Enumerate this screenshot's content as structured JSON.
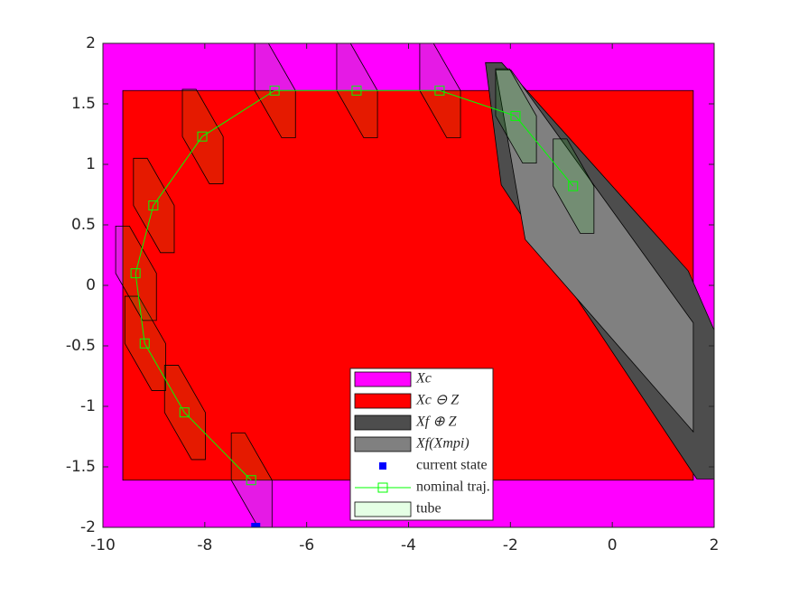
{
  "chart_data": {
    "type": "patch",
    "xlim": [
      -10,
      2
    ],
    "ylim": [
      -2,
      2
    ],
    "xticks": [
      -10,
      -8,
      -6,
      -4,
      -2,
      0,
      2
    ],
    "yticks": [
      -2,
      -1.5,
      -1,
      -0.5,
      0,
      0.5,
      1,
      1.5,
      2
    ],
    "legend": "south",
    "series": [
      {
        "name": "Xc",
        "type": "patch",
        "color": "#ff00ff",
        "x": [
          -10,
          2,
          2,
          -10
        ],
        "y": [
          -2,
          -2,
          2,
          2
        ]
      },
      {
        "name": "Xc ⊖ Z",
        "type": "patch",
        "color": "#ff0000",
        "x": [
          -9.61,
          1.59,
          1.59,
          -9.61
        ],
        "y": [
          -1.61,
          -1.61,
          1.61,
          1.61
        ]
      },
      {
        "name": "Xf ⊕ Z",
        "type": "patch",
        "color": "#4d4d4d",
        "x": [
          -2.49,
          -2.17,
          1.49,
          2.0,
          2.0,
          1.66,
          -2.18
        ],
        "y": [
          1.84,
          1.84,
          0.12,
          -0.37,
          -1.6,
          -1.6,
          0.83
        ]
      },
      {
        "name": "Xf(Xmpi)",
        "type": "patch",
        "color": "#808080",
        "x": [
          -2.29,
          -1.99,
          1.59,
          1.59,
          -1.71
        ],
        "y": [
          1.78,
          1.78,
          -0.31,
          -1.21,
          0.38
        ]
      },
      {
        "name": "current state",
        "type": "scatter",
        "color": "#0000ff",
        "x": [
          -7.0
        ],
        "y": [
          -2.0
        ]
      },
      {
        "name": "nominal traj.",
        "type": "line",
        "color": "#00ff00",
        "x": [
          -7.09,
          -8.4,
          -9.18,
          -9.36,
          -9.01,
          -8.05,
          -6.63,
          -5.02,
          -3.39,
          -1.9,
          -0.77
        ],
        "y": [
          -1.61,
          -1.05,
          -0.48,
          0.1,
          0.66,
          1.23,
          1.61,
          1.61,
          1.61,
          1.4,
          0.82
        ]
      },
      {
        "name": "tube",
        "type": "tube",
        "color": "#00ff00",
        "opacity": 0.1,
        "x": [
          -0.39,
          -0.12,
          0.41,
          0.41,
          0.14,
          -0.39
        ],
        "y": [
          0.39,
          0.39,
          0,
          -0.39,
          -0.39,
          0
        ]
      }
    ]
  }
}
